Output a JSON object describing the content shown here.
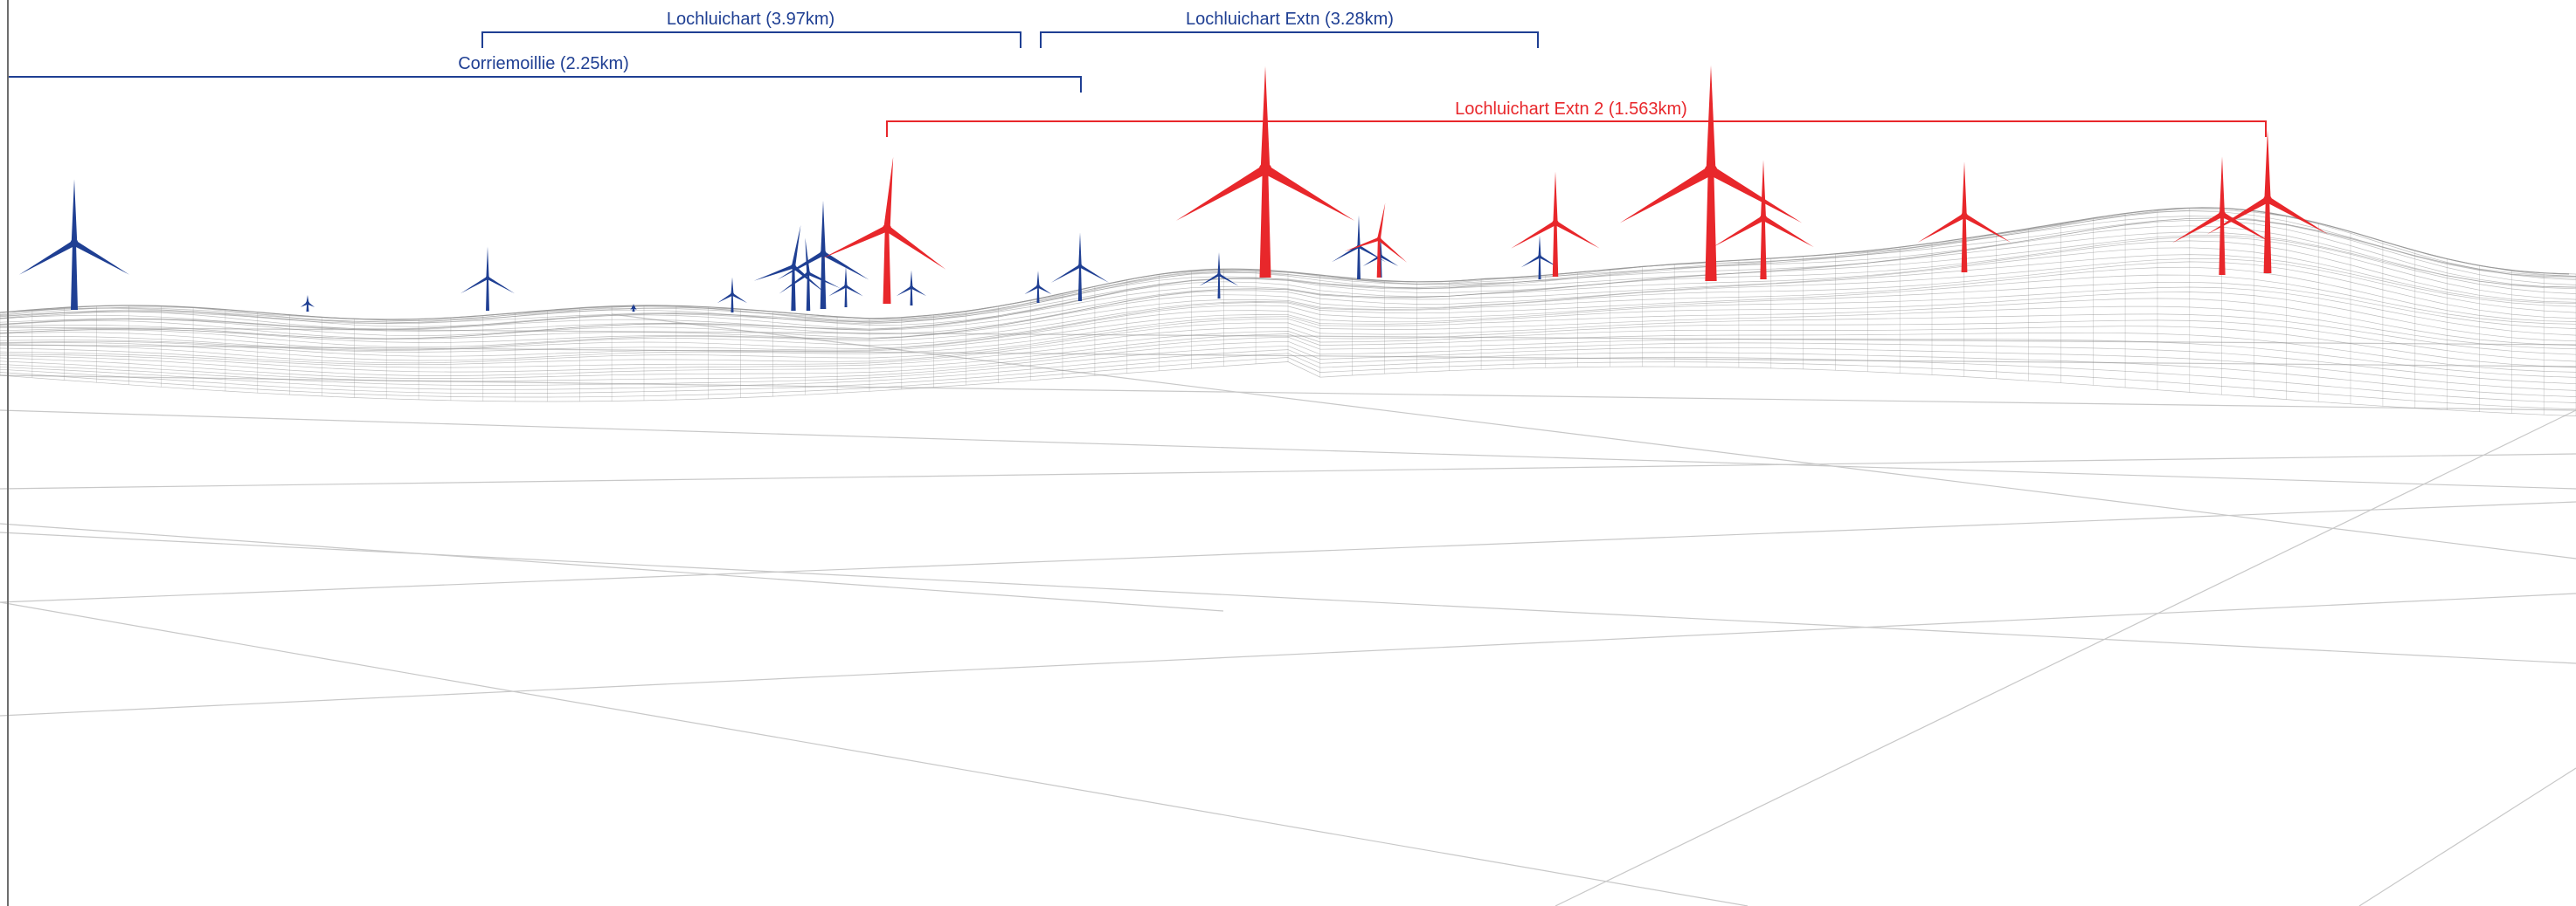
{
  "colors": {
    "existing": "#1f3f93",
    "proposed": "#e8272b",
    "mesh": "#8a8a8a",
    "frame": "#6e6e6e"
  },
  "labels": {
    "lochluichart": "Lochluichart (3.97km)",
    "lochluichart_extn": "Lochluichart Extn (3.28km)",
    "corriemoillie": "Corriemoillie (2.25km)",
    "lochluichart_extn2": "Lochluichart Extn 2 (1.563km)"
  }
}
